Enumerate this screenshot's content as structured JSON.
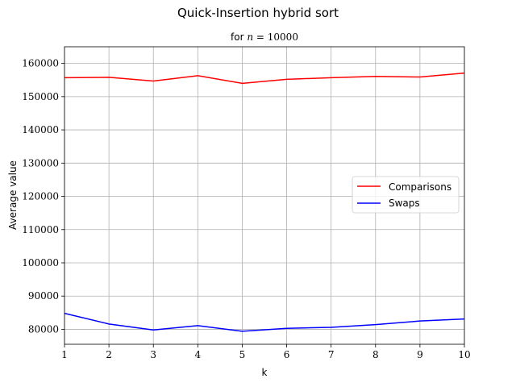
{
  "chart_data": {
    "type": "line",
    "title": "Quick-Insertion hybrid sort",
    "subtitle": {
      "prefix": "for ",
      "variable": "n",
      "relation": " = ",
      "value": "10000"
    },
    "xlabel": "k",
    "ylabel": "Average value",
    "xlim": [
      1,
      10
    ],
    "ylim": [
      75500,
      165000
    ],
    "xticks": [
      1,
      2,
      3,
      4,
      5,
      6,
      7,
      8,
      9,
      10
    ],
    "yticks": [
      80000,
      90000,
      100000,
      110000,
      120000,
      130000,
      140000,
      150000,
      160000
    ],
    "grid": true,
    "legend_position": "center-right",
    "x": [
      1,
      2,
      3,
      4,
      5,
      6,
      7,
      8,
      9,
      10
    ],
    "series": [
      {
        "name": "Comparisons",
        "color": "#ff0000",
        "values": [
          155700,
          155800,
          154700,
          156300,
          154000,
          155200,
          155700,
          156100,
          155900,
          157100
        ]
      },
      {
        "name": "Swaps",
        "color": "#0000ff",
        "values": [
          84800,
          81600,
          79800,
          81100,
          79400,
          80300,
          80600,
          81400,
          82500,
          83100
        ]
      }
    ]
  }
}
